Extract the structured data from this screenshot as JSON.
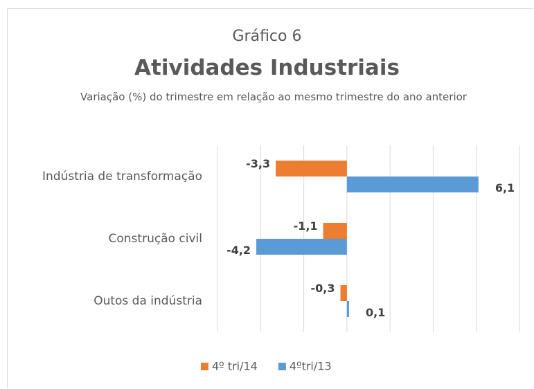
{
  "chart_data": {
    "type": "barh",
    "title": "Gráfico 6",
    "subtitle": "Atividades Industriais",
    "caption": "Variação (%) do trimestre em relação ao mesmo trimestre do ano anterior",
    "categories": [
      "Indústria de transformação",
      "Construção civil",
      "Outos da indústria"
    ],
    "series": [
      {
        "name": "4º tri/14",
        "color": "#ed7d31",
        "values": [
          -3.3,
          -1.1,
          -0.3
        ],
        "value_labels": [
          "-3,3",
          "-1,1",
          "-0,3"
        ]
      },
      {
        "name": "4ºtri/13",
        "color": "#5b9bd5",
        "values": [
          6.1,
          -4.2,
          0.1
        ],
        "value_labels": [
          "6,1",
          "-4,2",
          "0,1"
        ]
      }
    ],
    "xlim": [
      -6,
      8
    ],
    "xticks": [
      -6,
      -4,
      -2,
      0,
      2,
      4,
      6,
      8
    ],
    "grid": true,
    "tick_labels": false,
    "legend": "bottom"
  }
}
